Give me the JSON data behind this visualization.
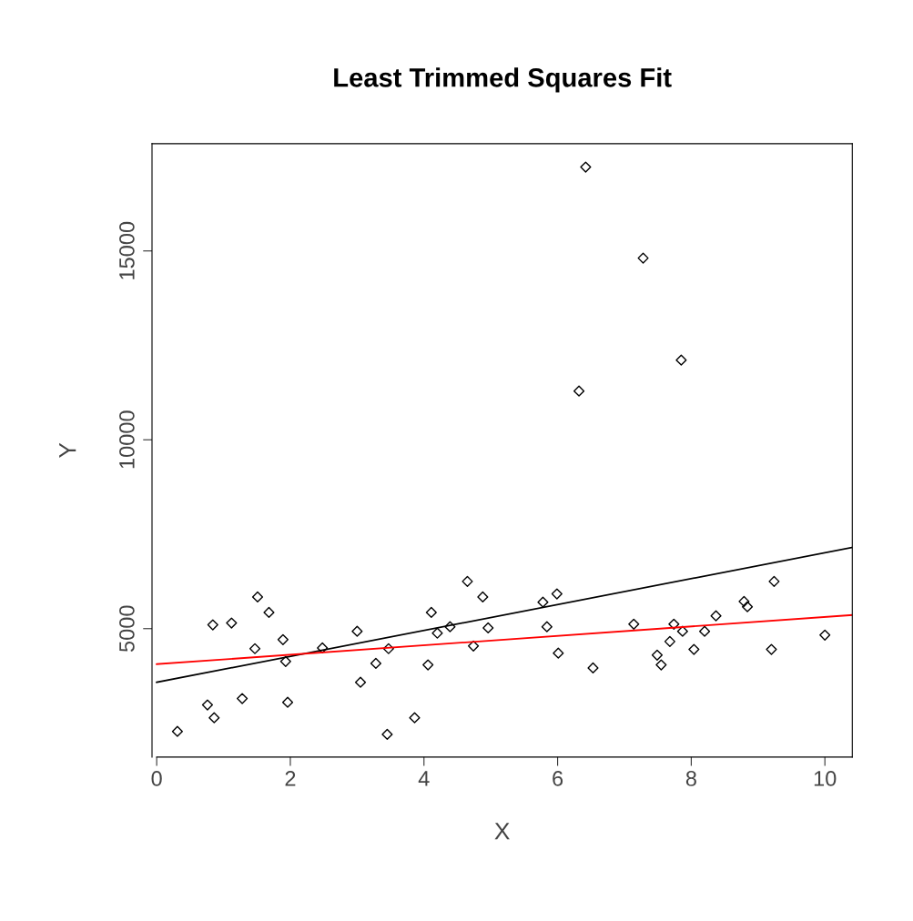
{
  "chart_data": {
    "type": "scatter",
    "title": "Least Trimmed Squares Fit",
    "xlabel": "X",
    "ylabel": "Y",
    "xlim": [
      -0.07,
      10.41
    ],
    "ylim": [
      1600,
      17840
    ],
    "xticks": [
      0,
      2,
      4,
      6,
      8,
      10
    ],
    "yticks": [
      5000,
      10000,
      15000
    ],
    "grid": false,
    "series": [
      {
        "marker": "diamond",
        "color": "#000000",
        "x": [
          0.31,
          0.76,
          0.86,
          0.84,
          1.12,
          1.28,
          1.47,
          1.51,
          1.68,
          1.89,
          1.93,
          1.96,
          2.48,
          3.0,
          3.05,
          3.28,
          3.45,
          3.47,
          3.86,
          4.06,
          4.11,
          4.2,
          4.39,
          4.65,
          4.74,
          4.88,
          4.96,
          5.78,
          5.84,
          5.99,
          6.01,
          6.32,
          6.42,
          6.53,
          7.14,
          7.28,
          7.49,
          7.55,
          7.68,
          7.74,
          7.87,
          7.85,
          8.04,
          8.2,
          8.37,
          8.79,
          8.84,
          9.24,
          9.2,
          10.0
        ],
        "values": [
          2280,
          2980,
          2640,
          5100,
          5150,
          3150,
          4470,
          5840,
          5430,
          4710,
          4130,
          3050,
          4490,
          4930,
          3580,
          4080,
          2200,
          4470,
          2640,
          4040,
          5430,
          4880,
          5050,
          6250,
          4540,
          5840,
          5020,
          5700,
          5050,
          5920,
          4350,
          11290,
          17220,
          3960,
          5120,
          14810,
          4300,
          4040,
          4660,
          5120,
          4930,
          12110,
          4450,
          4930,
          5340,
          5720,
          5580,
          6250,
          4450,
          4830
        ]
      },
      {
        "type": "line",
        "color": "#000000",
        "x": [
          0,
          10.41
        ],
        "values": [
          3580,
          7150
        ]
      },
      {
        "type": "line",
        "color": "#ff0000",
        "x": [
          0,
          10.41
        ],
        "values": [
          4060,
          5360
        ]
      }
    ]
  }
}
